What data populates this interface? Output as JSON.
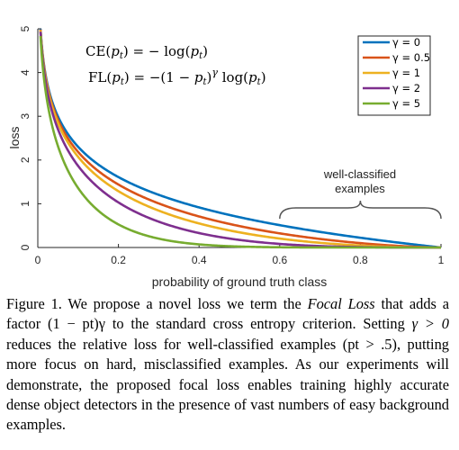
{
  "chart_data": {
    "type": "line",
    "title": "",
    "xlabel": "probability of ground truth class",
    "ylabel": "loss",
    "xlim": [
      0,
      1
    ],
    "ylim": [
      0,
      5
    ],
    "x_ticks": [
      "0",
      "0.2",
      "0.4",
      "0.6",
      "0.8",
      "1"
    ],
    "y_ticks": [
      "0",
      "1",
      "2",
      "3",
      "4",
      "5"
    ],
    "grid": false,
    "legend_position": "top-right",
    "equations": {
      "ce": "CE(pt) = − log(pt)",
      "fl": "FL(pt) = −(1 − pt)γ log(pt)"
    },
    "annotation": {
      "line1": "well-classified",
      "line2": "examples",
      "x_range": [
        0.6,
        1.0
      ]
    },
    "series": [
      {
        "name": "γ = 0",
        "gamma": 0,
        "color": "#0072bd"
      },
      {
        "name": "γ = 0.5",
        "gamma": 0.5,
        "color": "#d95319"
      },
      {
        "name": "γ = 1",
        "gamma": 1,
        "color": "#edb120"
      },
      {
        "name": "γ = 2",
        "gamma": 2,
        "color": "#7e2f8e"
      },
      {
        "name": "γ = 5",
        "gamma": 5,
        "color": "#77ac30"
      }
    ]
  },
  "caption": {
    "figure_label": "Figure 1.",
    "text_1": " We propose a novel loss we term the ",
    "focal_loss": "Focal Loss",
    "text_2": " that adds a factor ",
    "factor": "(1 − pt)γ",
    "text_3": " to the standard cross entropy criterion. Setting ",
    "gamma_cond": "γ > 0",
    "text_4": " reduces the relative loss for well-classified examples ",
    "pt_cond": "(pt > .5)",
    "text_5": ", putting more focus on hard, misclassified examples. As our experiments will demonstrate, the proposed focal loss enables training highly accurate dense object detectors in the presence of vast numbers of easy background examples."
  }
}
